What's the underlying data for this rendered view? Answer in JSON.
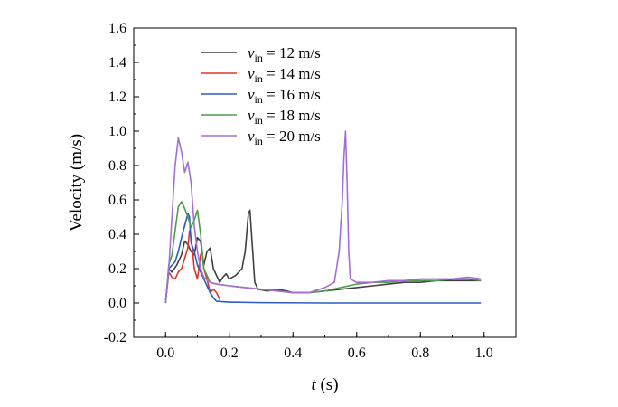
{
  "chart_data": {
    "type": "line",
    "title": "",
    "xlabel_italic": "t",
    "xlabel_unit": " (s)",
    "ylabel": "Velocity (m/s)",
    "xlim": [
      -0.1,
      1.1
    ],
    "ylim": [
      -0.2,
      1.6
    ],
    "x_ticks": [
      0.0,
      0.2,
      0.4,
      0.6,
      0.8,
      1.0
    ],
    "x_tick_labels": [
      "0.0",
      "0.2",
      "0.4",
      "0.6",
      "0.8",
      "1.0"
    ],
    "y_ticks": [
      -0.2,
      0.0,
      0.2,
      0.4,
      0.6,
      0.8,
      1.0,
      1.2,
      1.4,
      1.6
    ],
    "y_tick_labels": [
      "-0.2",
      "0.0",
      "0.2",
      "0.4",
      "0.6",
      "0.8",
      "1.0",
      "1.2",
      "1.4",
      "1.6"
    ],
    "grid": false,
    "legend_position": "top-left",
    "series": [
      {
        "name": "v_in = 12 m/s",
        "legend_var": "v",
        "legend_sub": "in",
        "legend_rest": " = 12 m/s",
        "color": "#404040",
        "points": [
          [
            0.0,
            0.0
          ],
          [
            0.01,
            0.2
          ],
          [
            0.02,
            0.18
          ],
          [
            0.035,
            0.22
          ],
          [
            0.05,
            0.28
          ],
          [
            0.06,
            0.36
          ],
          [
            0.07,
            0.34
          ],
          [
            0.08,
            0.3
          ],
          [
            0.09,
            0.28
          ],
          [
            0.1,
            0.38
          ],
          [
            0.11,
            0.36
          ],
          [
            0.12,
            0.22
          ],
          [
            0.13,
            0.3
          ],
          [
            0.14,
            0.32
          ],
          [
            0.15,
            0.2
          ],
          [
            0.16,
            0.16
          ],
          [
            0.17,
            0.12
          ],
          [
            0.18,
            0.15
          ],
          [
            0.19,
            0.17
          ],
          [
            0.2,
            0.14
          ],
          [
            0.22,
            0.16
          ],
          [
            0.24,
            0.2
          ],
          [
            0.25,
            0.3
          ],
          [
            0.26,
            0.52
          ],
          [
            0.265,
            0.54
          ],
          [
            0.27,
            0.4
          ],
          [
            0.28,
            0.12
          ],
          [
            0.29,
            0.08
          ],
          [
            0.32,
            0.07
          ],
          [
            0.35,
            0.08
          ],
          [
            0.38,
            0.07
          ],
          [
            0.4,
            0.06
          ],
          [
            0.45,
            0.06
          ],
          [
            0.5,
            0.07
          ],
          [
            0.55,
            0.08
          ],
          [
            0.6,
            0.09
          ],
          [
            0.65,
            0.1
          ],
          [
            0.7,
            0.11
          ],
          [
            0.75,
            0.12
          ],
          [
            0.8,
            0.12
          ],
          [
            0.85,
            0.13
          ],
          [
            0.9,
            0.13
          ],
          [
            0.95,
            0.13
          ],
          [
            0.99,
            0.13
          ]
        ]
      },
      {
        "name": "v_in = 14 m/s",
        "legend_var": "v",
        "legend_sub": "in",
        "legend_rest": " = 14 m/s",
        "color": "#e0352b",
        "points": [
          [
            0.0,
            0.0
          ],
          [
            0.01,
            0.18
          ],
          [
            0.02,
            0.15
          ],
          [
            0.03,
            0.14
          ],
          [
            0.04,
            0.18
          ],
          [
            0.05,
            0.2
          ],
          [
            0.06,
            0.26
          ],
          [
            0.07,
            0.32
          ],
          [
            0.075,
            0.42
          ],
          [
            0.08,
            0.38
          ],
          [
            0.085,
            0.3
          ],
          [
            0.09,
            0.2
          ],
          [
            0.1,
            0.14
          ],
          [
            0.11,
            0.28
          ],
          [
            0.115,
            0.3
          ],
          [
            0.12,
            0.2
          ],
          [
            0.13,
            0.14
          ],
          [
            0.14,
            0.06
          ],
          [
            0.15,
            0.08
          ],
          [
            0.16,
            0.06
          ],
          [
            0.17,
            0.02
          ]
        ]
      },
      {
        "name": "v_in = 16 m/s",
        "legend_var": "v",
        "legend_sub": "in",
        "legend_rest": " = 16 m/s",
        "color": "#2e5cc6",
        "points": [
          [
            0.0,
            0.0
          ],
          [
            0.01,
            0.2
          ],
          [
            0.02,
            0.22
          ],
          [
            0.03,
            0.24
          ],
          [
            0.04,
            0.3
          ],
          [
            0.05,
            0.38
          ],
          [
            0.06,
            0.45
          ],
          [
            0.07,
            0.52
          ],
          [
            0.075,
            0.5
          ],
          [
            0.08,
            0.35
          ],
          [
            0.09,
            0.3
          ],
          [
            0.1,
            0.22
          ],
          [
            0.11,
            0.18
          ],
          [
            0.12,
            0.14
          ],
          [
            0.13,
            0.1
          ],
          [
            0.14,
            0.06
          ],
          [
            0.15,
            0.03
          ],
          [
            0.16,
            0.01
          ],
          [
            0.2,
            0.005
          ],
          [
            0.3,
            0.002
          ],
          [
            0.5,
            0.0
          ],
          [
            0.7,
            0.0
          ],
          [
            0.99,
            0.0
          ]
        ]
      },
      {
        "name": "v_in = 18 m/s",
        "legend_var": "v",
        "legend_sub": "in",
        "legend_rest": " = 18 m/s",
        "color": "#4c9e4a",
        "points": [
          [
            0.0,
            0.0
          ],
          [
            0.01,
            0.22
          ],
          [
            0.02,
            0.28
          ],
          [
            0.03,
            0.42
          ],
          [
            0.04,
            0.56
          ],
          [
            0.05,
            0.59
          ],
          [
            0.06,
            0.55
          ],
          [
            0.07,
            0.5
          ],
          [
            0.08,
            0.44
          ],
          [
            0.09,
            0.48
          ],
          [
            0.1,
            0.54
          ],
          [
            0.11,
            0.4
          ],
          [
            0.12,
            0.2
          ],
          [
            0.13,
            0.16
          ],
          [
            0.14,
            0.12
          ],
          [
            0.16,
            0.11
          ],
          [
            0.2,
            0.1
          ],
          [
            0.25,
            0.09
          ],
          [
            0.3,
            0.08
          ],
          [
            0.35,
            0.07
          ],
          [
            0.4,
            0.06
          ],
          [
            0.45,
            0.06
          ],
          [
            0.5,
            0.07
          ],
          [
            0.55,
            0.09
          ],
          [
            0.6,
            0.11
          ],
          [
            0.65,
            0.12
          ],
          [
            0.7,
            0.12
          ],
          [
            0.75,
            0.13
          ],
          [
            0.8,
            0.13
          ],
          [
            0.85,
            0.13
          ],
          [
            0.9,
            0.14
          ],
          [
            0.95,
            0.14
          ],
          [
            0.99,
            0.13
          ]
        ]
      },
      {
        "name": "v_in = 20 m/s",
        "legend_var": "v",
        "legend_sub": "in",
        "legend_rest": " = 20 m/s",
        "color": "#a46fd4",
        "points": [
          [
            0.0,
            0.0
          ],
          [
            0.01,
            0.2
          ],
          [
            0.02,
            0.5
          ],
          [
            0.03,
            0.8
          ],
          [
            0.04,
            0.96
          ],
          [
            0.05,
            0.88
          ],
          [
            0.06,
            0.76
          ],
          [
            0.07,
            0.82
          ],
          [
            0.08,
            0.7
          ],
          [
            0.09,
            0.45
          ],
          [
            0.1,
            0.3
          ],
          [
            0.11,
            0.2
          ],
          [
            0.12,
            0.15
          ],
          [
            0.14,
            0.12
          ],
          [
            0.16,
            0.11
          ],
          [
            0.2,
            0.1
          ],
          [
            0.25,
            0.09
          ],
          [
            0.3,
            0.08
          ],
          [
            0.35,
            0.07
          ],
          [
            0.4,
            0.06
          ],
          [
            0.45,
            0.06
          ],
          [
            0.5,
            0.09
          ],
          [
            0.53,
            0.12
          ],
          [
            0.545,
            0.3
          ],
          [
            0.555,
            0.6
          ],
          [
            0.56,
            0.85
          ],
          [
            0.565,
            1.0
          ],
          [
            0.57,
            0.7
          ],
          [
            0.575,
            0.3
          ],
          [
            0.58,
            0.14
          ],
          [
            0.6,
            0.12
          ],
          [
            0.65,
            0.12
          ],
          [
            0.7,
            0.13
          ],
          [
            0.75,
            0.13
          ],
          [
            0.8,
            0.14
          ],
          [
            0.85,
            0.14
          ],
          [
            0.9,
            0.14
          ],
          [
            0.95,
            0.15
          ],
          [
            0.99,
            0.14
          ]
        ]
      }
    ]
  }
}
